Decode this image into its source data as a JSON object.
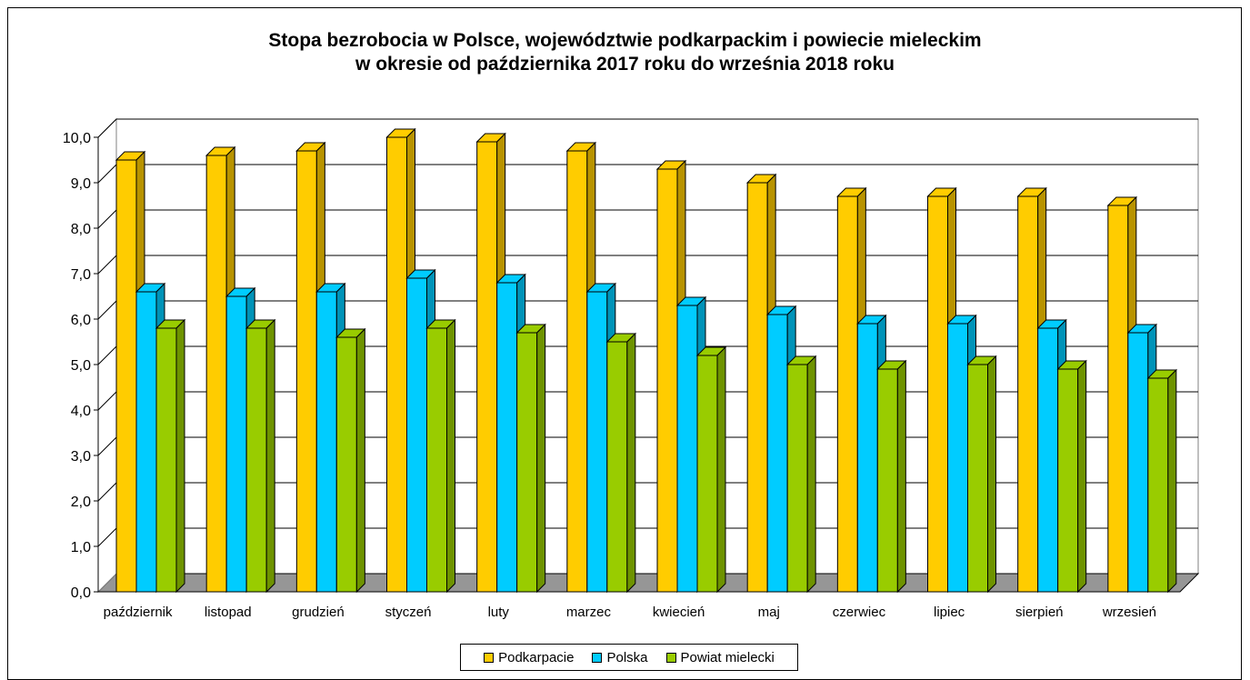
{
  "chart_data": {
    "type": "bar",
    "title": "Stopa bezrobocia w Polsce, województwie podkarpackim i powiecie mieleckim",
    "subtitle": "w okresie od października 2017 roku do września 2018 roku",
    "categories": [
      "październik",
      "listopad",
      "grudzień",
      "styczeń",
      "luty",
      "marzec",
      "kwiecień",
      "maj",
      "czerwiec",
      "lipiec",
      "sierpień",
      "wrzesień"
    ],
    "series": [
      {
        "name": "Podkarpacie",
        "color": "#FFCC00",
        "values": [
          9.5,
          9.6,
          9.7,
          10.0,
          9.9,
          9.7,
          9.3,
          9.0,
          8.7,
          8.7,
          8.7,
          8.5
        ]
      },
      {
        "name": "Polska",
        "color": "#00CCFF",
        "values": [
          6.6,
          6.5,
          6.6,
          6.9,
          6.8,
          6.6,
          6.3,
          6.1,
          5.9,
          5.9,
          5.8,
          5.7
        ]
      },
      {
        "name": "Powiat mielecki",
        "color": "#99CC00",
        "values": [
          5.8,
          5.8,
          5.6,
          5.8,
          5.7,
          5.5,
          5.2,
          5.0,
          4.9,
          5.0,
          4.9,
          4.7
        ]
      }
    ],
    "yticks": [
      "0,0",
      "1,0",
      "2,0",
      "3,0",
      "4,0",
      "5,0",
      "6,0",
      "7,0",
      "8,0",
      "9,0",
      "10,0"
    ],
    "ylim": [
      0,
      10
    ],
    "grid": true,
    "legend_position": "bottom",
    "style": "3d-clustered-column"
  }
}
